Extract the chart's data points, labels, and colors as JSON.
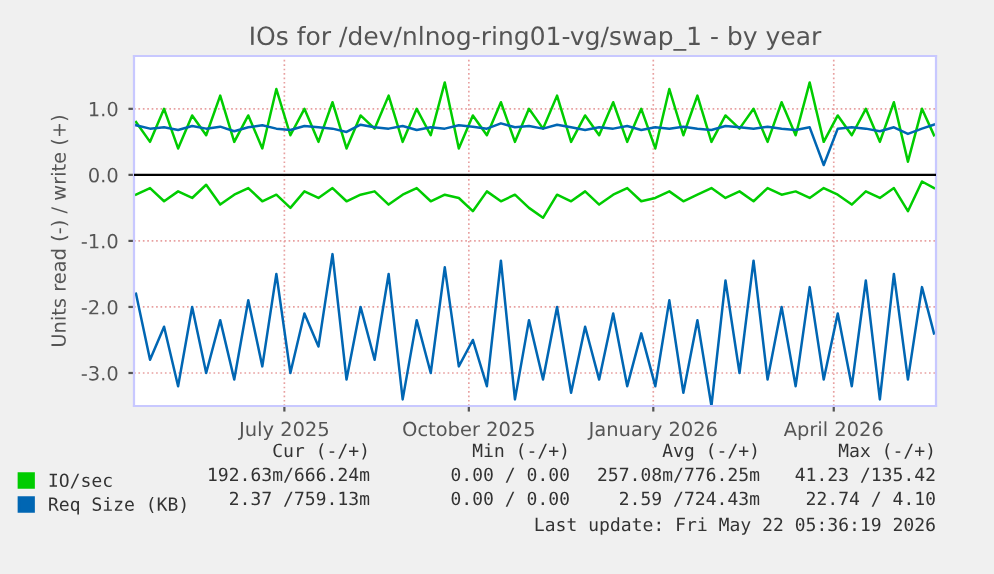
{
  "chart_data": {
    "type": "line",
    "title": "IOs for /dev/nlnog-ring01-vg/swap_1 - by year",
    "ylabel": "Units read (-) / write (+)",
    "x": [
      "2025-04-18",
      "2025-04-25",
      "2025-05-02",
      "2025-05-09",
      "2025-05-16",
      "2025-05-23",
      "2025-05-30",
      "2025-06-06",
      "2025-06-13",
      "2025-06-20",
      "2025-06-27",
      "2025-07-04",
      "2025-07-11",
      "2025-07-18",
      "2025-07-25",
      "2025-08-01",
      "2025-08-08",
      "2025-08-15",
      "2025-08-22",
      "2025-08-29",
      "2025-09-05",
      "2025-09-12",
      "2025-09-19",
      "2025-09-26",
      "2025-10-03",
      "2025-10-10",
      "2025-10-17",
      "2025-10-24",
      "2025-10-31",
      "2025-11-07",
      "2025-11-14",
      "2025-11-21",
      "2025-11-28",
      "2025-12-05",
      "2025-12-12",
      "2025-12-19",
      "2025-12-26",
      "2026-01-02",
      "2026-01-09",
      "2026-01-16",
      "2026-01-23",
      "2026-01-30",
      "2026-02-06",
      "2026-02-13",
      "2026-02-20",
      "2026-02-27",
      "2026-03-06",
      "2026-03-13",
      "2026-03-20",
      "2026-03-27",
      "2026-04-03",
      "2026-04-10",
      "2026-04-17",
      "2026-04-24",
      "2026-05-01",
      "2026-05-08",
      "2026-05-15",
      "2026-05-21"
    ],
    "series": [
      {
        "name": "IO/sec",
        "color": "#00cc00",
        "values": [
          0.8,
          0.5,
          1.0,
          0.4,
          0.9,
          0.6,
          1.2,
          0.5,
          0.9,
          0.4,
          1.3,
          0.6,
          1.0,
          0.5,
          1.1,
          0.4,
          0.9,
          0.7,
          1.2,
          0.5,
          1.0,
          0.6,
          1.4,
          0.4,
          0.9,
          0.6,
          1.1,
          0.5,
          1.0,
          0.7,
          1.2,
          0.5,
          0.9,
          0.6,
          1.1,
          0.5,
          1.0,
          0.4,
          1.3,
          0.6,
          1.2,
          0.5,
          0.9,
          0.7,
          1.0,
          0.5,
          1.1,
          0.6,
          1.4,
          0.5,
          0.9,
          0.6,
          1.0,
          0.5,
          1.1,
          0.2,
          1.0,
          0.6
        ]
      },
      {
        "color": "#00cc00",
        "values": [
          -0.3,
          -0.2,
          -0.4,
          -0.25,
          -0.35,
          -0.15,
          -0.45,
          -0.3,
          -0.2,
          -0.4,
          -0.3,
          -0.5,
          -0.25,
          -0.35,
          -0.2,
          -0.4,
          -0.3,
          -0.25,
          -0.45,
          -0.3,
          -0.2,
          -0.4,
          -0.3,
          -0.35,
          -0.55,
          -0.25,
          -0.4,
          -0.3,
          -0.5,
          -0.65,
          -0.3,
          -0.4,
          -0.25,
          -0.45,
          -0.3,
          -0.2,
          -0.4,
          -0.35,
          -0.25,
          -0.4,
          -0.3,
          -0.2,
          -0.35,
          -0.25,
          -0.4,
          -0.2,
          -0.3,
          -0.25,
          -0.35,
          -0.2,
          -0.3,
          -0.45,
          -0.25,
          -0.35,
          -0.2,
          -0.55,
          -0.1,
          -0.2
        ]
      },
      {
        "name": "Req Size (KB)",
        "color": "#0066b3",
        "values": [
          0.75,
          0.7,
          0.72,
          0.68,
          0.74,
          0.7,
          0.73,
          0.66,
          0.72,
          0.75,
          0.7,
          0.68,
          0.74,
          0.72,
          0.7,
          0.65,
          0.76,
          0.72,
          0.7,
          0.74,
          0.68,
          0.72,
          0.7,
          0.75,
          0.73,
          0.7,
          0.78,
          0.72,
          0.74,
          0.7,
          0.76,
          0.72,
          0.68,
          0.72,
          0.7,
          0.74,
          0.68,
          0.72,
          0.7,
          0.73,
          0.7,
          0.68,
          0.74,
          0.72,
          0.7,
          0.73,
          0.7,
          0.68,
          0.72,
          0.15,
          0.7,
          0.72,
          0.7,
          0.66,
          0.72,
          0.62,
          0.7,
          0.76
        ]
      },
      {
        "color": "#0066b3",
        "values": [
          -1.8,
          -2.8,
          -2.3,
          -3.2,
          -2.0,
          -3.0,
          -2.2,
          -3.1,
          -1.9,
          -2.9,
          -1.5,
          -3.0,
          -2.1,
          -2.6,
          -1.2,
          -3.1,
          -2.0,
          -2.8,
          -1.5,
          -3.4,
          -2.2,
          -3.0,
          -1.4,
          -2.9,
          -2.5,
          -3.2,
          -1.3,
          -3.4,
          -2.2,
          -3.1,
          -2.0,
          -3.3,
          -2.3,
          -3.1,
          -2.1,
          -3.2,
          -2.4,
          -3.2,
          -1.9,
          -3.3,
          -2.2,
          -3.5,
          -1.6,
          -3.0,
          -1.3,
          -3.1,
          -2.0,
          -3.2,
          -1.7,
          -3.1,
          -2.1,
          -3.2,
          -1.6,
          -3.4,
          -1.5,
          -3.1,
          -1.7,
          -2.4
        ]
      }
    ],
    "xlim": [
      "2025-04-17",
      "2026-05-22"
    ],
    "xticks": [
      {
        "value": "2025-07-01",
        "label": "July 2025"
      },
      {
        "value": "2025-10-01",
        "label": "October 2025"
      },
      {
        "value": "2026-01-01",
        "label": "January 2026"
      },
      {
        "value": "2026-04-01",
        "label": "April 2026"
      }
    ],
    "ylim": [
      -3.5,
      1.8
    ],
    "yticks": [
      {
        "value": -3,
        "label": "-3.0"
      },
      {
        "value": -2,
        "label": "-2.0"
      },
      {
        "value": -1,
        "label": "-1.0"
      },
      {
        "value": 0,
        "label": "0.0"
      },
      {
        "value": 1,
        "label": "1.0"
      }
    ],
    "ref_lines": [
      {
        "axis": "y",
        "value": 0,
        "color": "#000000"
      }
    ],
    "grid": true,
    "legend": "bottom left",
    "marker": "none",
    "line_style": "solid",
    "annotations": [
      "Cur (-/+)",
      "Min (-/+)",
      "Avg (-/+)",
      "Max (-/+)",
      "192.63m/666.24m",
      "0.00 / 0.00",
      "257.08m/776.25m",
      "41.23 /135.42",
      "2.37 /759.13m",
      "0.00 / 0.00",
      "2.59 /724.43m",
      "22.74 / 4.10",
      "Last update: Fri May 22 05:36:19 2026"
    ]
  }
}
